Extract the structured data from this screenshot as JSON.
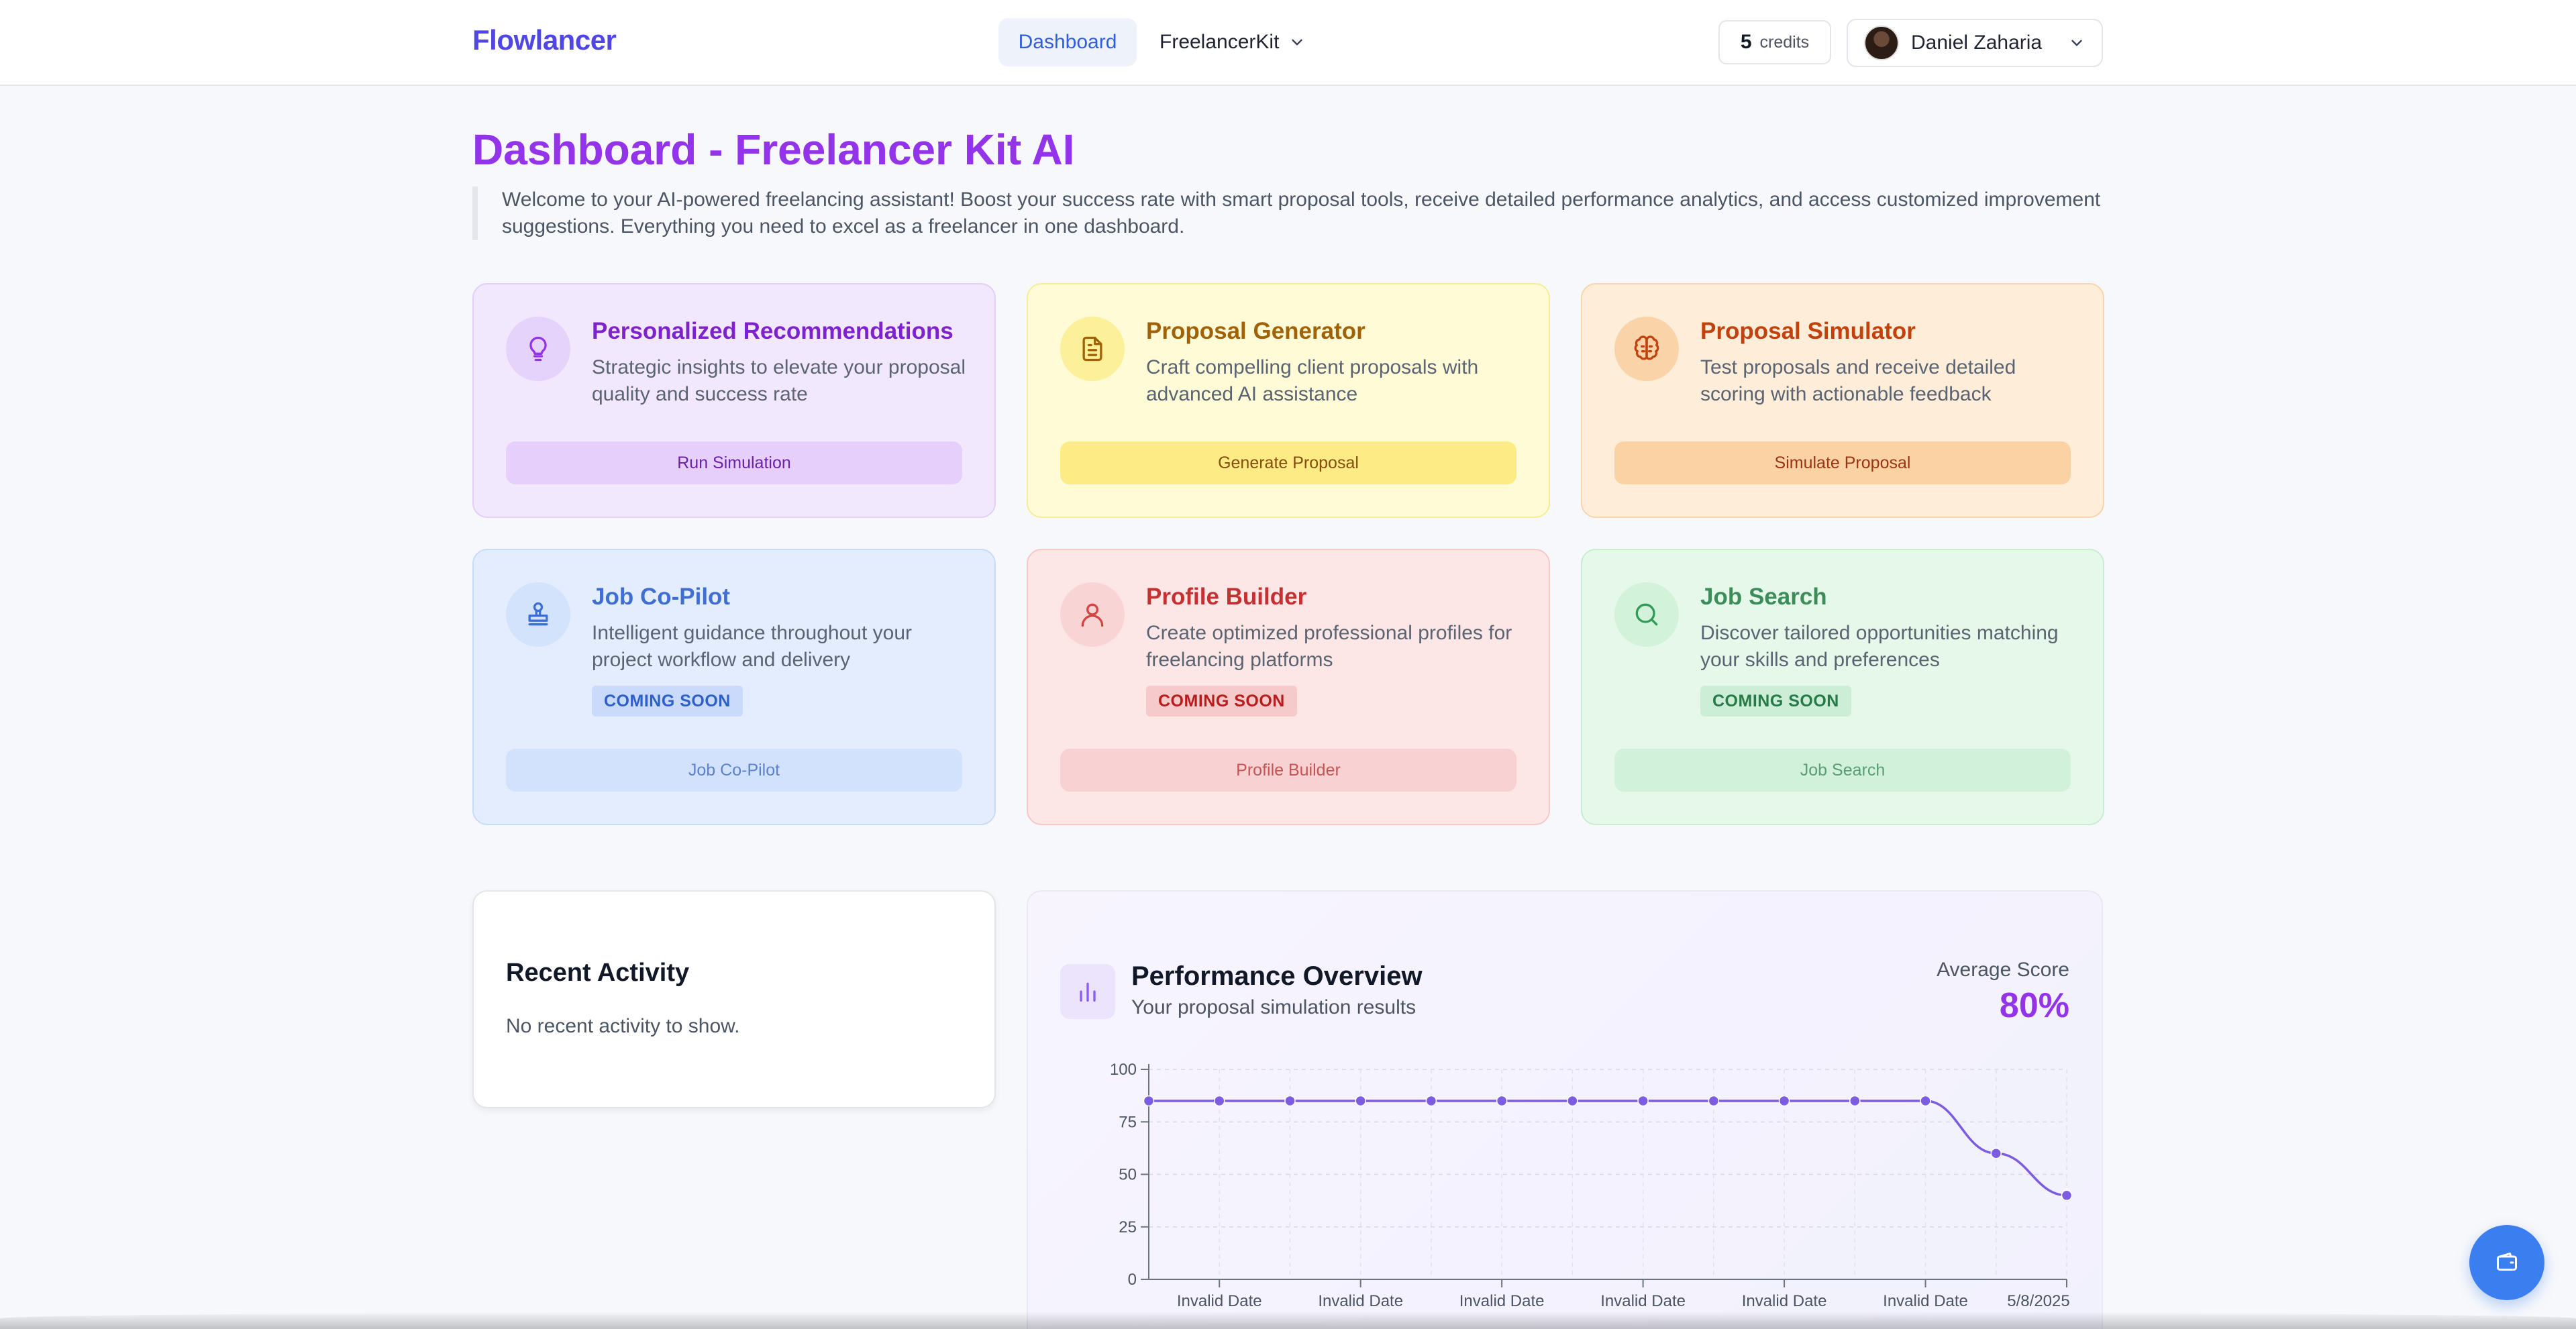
{
  "header": {
    "brand": "Flowlancer",
    "nav": {
      "dashboard": "Dashboard",
      "kit": "FreelancerKit"
    },
    "credits": {
      "value": "5",
      "label": "credits"
    },
    "user": {
      "name": "Daniel Zaharia"
    }
  },
  "page": {
    "title": "Dashboard - Freelancer Kit AI",
    "intro": "Welcome to your AI-powered freelancing assistant! Boost your success rate with smart proposal tools, receive detailed performance analytics, and access customized improvement suggestions. Everything you need to excel as a freelancer in one dashboard."
  },
  "cards": [
    {
      "title": "Personalized Recommendations",
      "desc": "Strategic insights to elevate your proposal quality and success rate",
      "button": "Run Simulation",
      "icon": "lightbulb-icon",
      "color": "#9333ea"
    },
    {
      "title": "Proposal Generator",
      "desc": "Craft compelling client proposals with advanced AI assistance",
      "button": "Generate Proposal",
      "icon": "document-icon",
      "color": "#a16207"
    },
    {
      "title": "Proposal Simulator",
      "desc": "Test proposals and receive detailed scoring with actionable feedback",
      "button": "Simulate Proposal",
      "icon": "brain-icon",
      "color": "#c2410c"
    },
    {
      "title": "Job Co-Pilot",
      "desc": "Intelligent guidance throughout your project workflow and delivery",
      "badge": "COMING SOON",
      "button": "Job Co-Pilot",
      "icon": "stamp-icon",
      "color": "#3b6fd8"
    },
    {
      "title": "Profile Builder",
      "desc": "Create optimized professional profiles for freelancing platforms",
      "badge": "COMING SOON",
      "button": "Profile Builder",
      "icon": "user-icon",
      "color": "#d64545"
    },
    {
      "title": "Job Search",
      "desc": "Discover tailored opportunities matching your skills and preferences",
      "badge": "COMING SOON",
      "button": "Job Search",
      "icon": "search-icon",
      "color": "#2f9c56"
    }
  ],
  "recent": {
    "title": "Recent Activity",
    "empty": "No recent activity to show."
  },
  "performance": {
    "title": "Performance Overview",
    "subtitle": "Your proposal simulation results",
    "avg_label": "Average Score",
    "avg_value": "80%"
  },
  "chart_data": {
    "type": "line",
    "ylim": [
      0,
      100
    ],
    "yticks": [
      0,
      25,
      50,
      75,
      100
    ],
    "xtick_labels": [
      "Invalid Date",
      "Invalid Date",
      "Invalid Date",
      "Invalid Date",
      "Invalid Date",
      "Invalid Date",
      "5/8/2025"
    ],
    "series": [
      {
        "values": [
          85,
          85,
          85,
          85,
          85,
          85,
          85,
          85,
          85,
          85,
          85,
          85,
          60,
          40
        ]
      }
    ],
    "grid": true,
    "line_color": "#7c5ce0"
  }
}
